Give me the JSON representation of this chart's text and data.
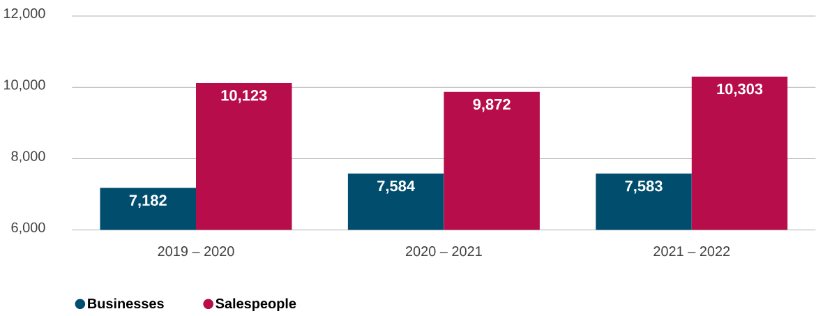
{
  "chart_data": {
    "type": "bar",
    "categories": [
      "2019 – 2020",
      "2020 – 2021",
      "2021 – 2022"
    ],
    "series": [
      {
        "name": "Businesses",
        "color": "#004d6e",
        "values": [
          7182,
          7584,
          7583
        ],
        "value_labels": [
          "7,182",
          "7,584",
          "7,583"
        ]
      },
      {
        "name": "Salespeople",
        "color": "#b70e4b",
        "values": [
          10123,
          9872,
          10303
        ],
        "value_labels": [
          "10,123",
          "9,872",
          "10,303"
        ]
      }
    ],
    "ylim": [
      6000,
      12000
    ],
    "yticks": [
      {
        "value": 6000,
        "label": "6,000"
      },
      {
        "value": 8000,
        "label": "8,000"
      },
      {
        "value": 10000,
        "label": "10,000"
      },
      {
        "value": 12000,
        "label": "12,000"
      }
    ],
    "grid": "y",
    "legend": "bottom left"
  }
}
